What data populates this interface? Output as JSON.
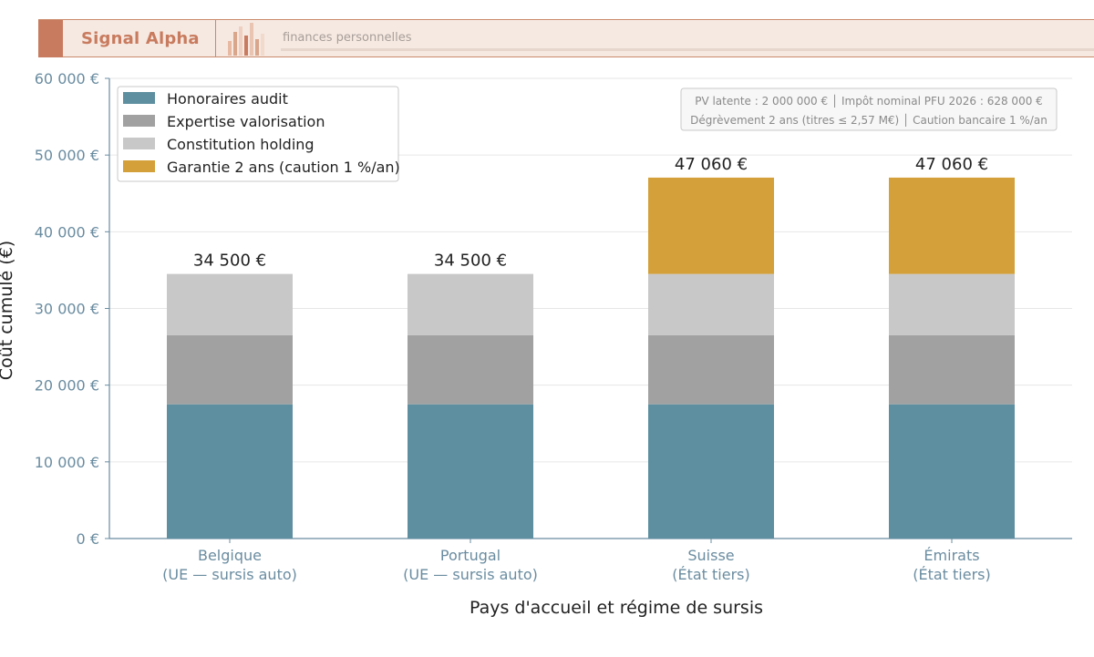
{
  "header": {
    "brand": "Signal Alpha",
    "tagline": "finances personnelles"
  },
  "info_box": {
    "line1": "PV latente : 2 000 000 € │ Impôt nominal PFU 2026 : 628 000 €",
    "line2": "Dégrèvement 2 ans (titres ≤ 2,57 M€) │ Caution bancaire 1 %/an"
  },
  "colors": {
    "audit": "#5e8fa0",
    "expertise": "#a1a1a1",
    "holding": "#c8c8c8",
    "garantie": "#d4a03a",
    "axis_text": "#6a8ca0",
    "grid": "#e6e6e6"
  },
  "chart_data": {
    "type": "bar",
    "stacked": true,
    "title": "",
    "xlabel": "Pays d'accueil et régime de sursis",
    "ylabel": "Coût cumulé (€)",
    "ylim": [
      0,
      60000
    ],
    "y_ticks": [
      0,
      10000,
      20000,
      30000,
      40000,
      50000,
      60000
    ],
    "y_tick_labels": [
      "0 €",
      "10 000 €",
      "20 000 €",
      "30 000 €",
      "40 000 €",
      "50 000 €",
      "60 000 €"
    ],
    "grid": true,
    "legend_position": "top-left",
    "categories": [
      [
        "Belgique",
        "(UE — sursis auto)"
      ],
      [
        "Portugal",
        "(UE — sursis auto)"
      ],
      [
        "Suisse",
        "(État tiers)"
      ],
      [
        "Émirats",
        "(État tiers)"
      ]
    ],
    "series": [
      {
        "name": "Honoraires audit",
        "key": "audit",
        "values": [
          17500,
          17500,
          17500,
          17500
        ]
      },
      {
        "name": "Expertise valorisation",
        "key": "expertise",
        "values": [
          9000,
          9000,
          9000,
          9000
        ]
      },
      {
        "name": "Constitution holding",
        "key": "holding",
        "values": [
          8000,
          8000,
          8000,
          8000
        ]
      },
      {
        "name": "Garantie 2 ans (caution 1 %/an)",
        "key": "garantie",
        "values": [
          0,
          0,
          12560,
          12560
        ]
      }
    ],
    "totals": [
      "34 500 €",
      "34 500 €",
      "47 060 €",
      "47 060 €"
    ]
  }
}
